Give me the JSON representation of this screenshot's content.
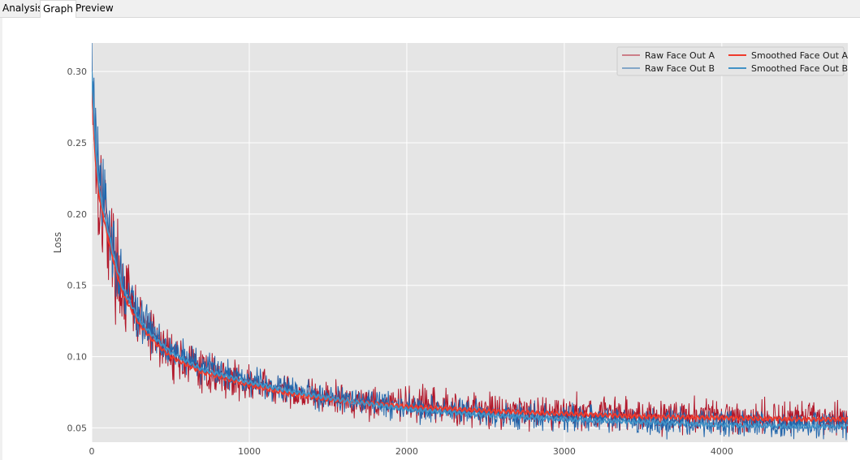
{
  "tabs": [
    {
      "label": "Analysis",
      "active": false
    },
    {
      "label": "Graph",
      "active": true
    },
    {
      "label": "Preview",
      "active": false
    }
  ],
  "chart_data": {
    "type": "line",
    "title": "",
    "xlabel": "",
    "ylabel": "Loss",
    "xlim": [
      0,
      4800
    ],
    "ylim": [
      0.04,
      0.32
    ],
    "x_ticks": [
      0,
      1000,
      2000,
      3000,
      4000
    ],
    "y_ticks": [
      0.05,
      0.1,
      0.15,
      0.2,
      0.25,
      0.3
    ],
    "y_tick_labels": [
      "0.05",
      "0.10",
      "0.15",
      "0.20",
      "0.25",
      "0.30"
    ],
    "grid": true,
    "legend_position": "top-right",
    "x_iterations_approx": 4800,
    "series": [
      {
        "name": "Raw Face Out A",
        "color": "#b2182b",
        "style": "raw",
        "points": [
          [
            0,
            0.3
          ],
          [
            25,
            0.24
          ],
          [
            50,
            0.215
          ],
          [
            100,
            0.19
          ],
          [
            150,
            0.165
          ],
          [
            200,
            0.145
          ],
          [
            300,
            0.125
          ],
          [
            400,
            0.112
          ],
          [
            500,
            0.102
          ],
          [
            700,
            0.09
          ],
          [
            1000,
            0.081
          ],
          [
            1250,
            0.075
          ],
          [
            1500,
            0.071
          ],
          [
            2000,
            0.066
          ],
          [
            2500,
            0.063
          ],
          [
            3000,
            0.061
          ],
          [
            3500,
            0.059
          ],
          [
            4000,
            0.058
          ],
          [
            4500,
            0.057
          ],
          [
            4800,
            0.057
          ]
        ],
        "noise": 0.009
      },
      {
        "name": "Raw Face Out B",
        "color": "#2166ac",
        "style": "raw",
        "points": [
          [
            0,
            0.31
          ],
          [
            25,
            0.25
          ],
          [
            50,
            0.22
          ],
          [
            100,
            0.195
          ],
          [
            150,
            0.17
          ],
          [
            200,
            0.15
          ],
          [
            300,
            0.128
          ],
          [
            400,
            0.115
          ],
          [
            500,
            0.105
          ],
          [
            700,
            0.093
          ],
          [
            1000,
            0.084
          ],
          [
            1250,
            0.077
          ],
          [
            1500,
            0.072
          ],
          [
            2000,
            0.064
          ],
          [
            2500,
            0.06
          ],
          [
            3000,
            0.057
          ],
          [
            3500,
            0.055
          ],
          [
            4000,
            0.053
          ],
          [
            4500,
            0.052
          ],
          [
            4800,
            0.052
          ]
        ],
        "noise": 0.007
      },
      {
        "name": "Smoothed Face Out A",
        "color": "#ef3b2c",
        "style": "smoothed",
        "points": [
          [
            0,
            0.29
          ],
          [
            25,
            0.235
          ],
          [
            50,
            0.21
          ],
          [
            100,
            0.185
          ],
          [
            150,
            0.162
          ],
          [
            200,
            0.143
          ],
          [
            300,
            0.123
          ],
          [
            400,
            0.11
          ],
          [
            500,
            0.1
          ],
          [
            700,
            0.089
          ],
          [
            1000,
            0.08
          ],
          [
            1250,
            0.074
          ],
          [
            1500,
            0.07
          ],
          [
            2000,
            0.065
          ],
          [
            2500,
            0.062
          ],
          [
            3000,
            0.06
          ],
          [
            3500,
            0.058
          ],
          [
            4000,
            0.057
          ],
          [
            4500,
            0.056
          ],
          [
            4800,
            0.056
          ]
        ]
      },
      {
        "name": "Smoothed Face Out B",
        "color": "#4292c6",
        "style": "smoothed",
        "points": [
          [
            0,
            0.3
          ],
          [
            25,
            0.245
          ],
          [
            50,
            0.215
          ],
          [
            100,
            0.19
          ],
          [
            150,
            0.166
          ],
          [
            200,
            0.147
          ],
          [
            300,
            0.126
          ],
          [
            400,
            0.113
          ],
          [
            500,
            0.103
          ],
          [
            700,
            0.091
          ],
          [
            1000,
            0.082
          ],
          [
            1250,
            0.076
          ],
          [
            1500,
            0.071
          ],
          [
            2000,
            0.063
          ],
          [
            2500,
            0.059
          ],
          [
            3000,
            0.056
          ],
          [
            3500,
            0.054
          ],
          [
            4000,
            0.052
          ],
          [
            4500,
            0.051
          ],
          [
            4800,
            0.051
          ]
        ]
      }
    ]
  }
}
